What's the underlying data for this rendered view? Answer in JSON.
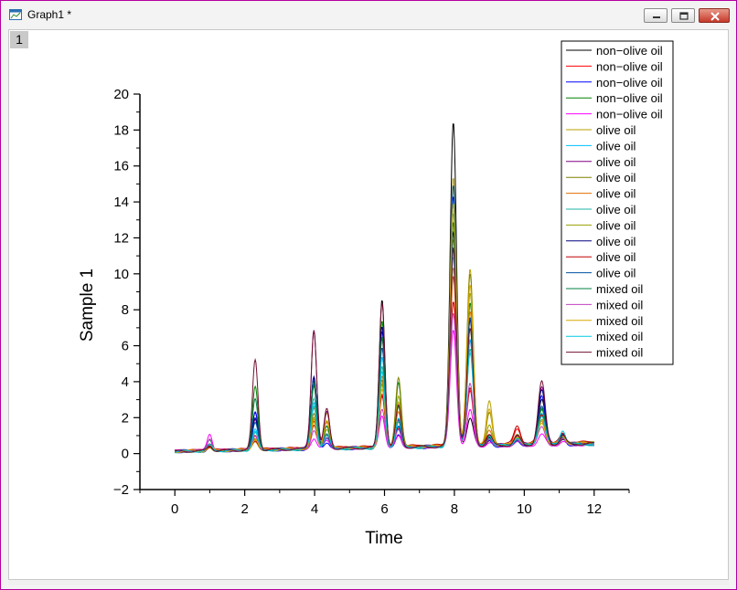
{
  "window": {
    "title": "Graph1 *",
    "layer_label": "1",
    "accent_border": "#b4009e"
  },
  "chart_data": {
    "type": "line",
    "title": "",
    "xlabel": "Time",
    "ylabel": "Sample 1",
    "xlim": [
      -1,
      13
    ],
    "ylim": [
      -2,
      20
    ],
    "xticks": [
      0,
      2,
      4,
      6,
      8,
      10,
      12
    ],
    "yticks": [
      -2,
      0,
      2,
      4,
      6,
      8,
      10,
      12,
      14,
      16,
      18,
      20
    ],
    "grid": false,
    "legend_position": "top-right",
    "x_range": [
      0,
      12
    ],
    "peaks": [
      {
        "center": 1.0,
        "width": 0.07
      },
      {
        "center": 2.3,
        "width": 0.08
      },
      {
        "center": 3.98,
        "width": 0.08
      },
      {
        "center": 4.35,
        "width": 0.08
      },
      {
        "center": 5.93,
        "width": 0.08
      },
      {
        "center": 6.4,
        "width": 0.08
      },
      {
        "center": 7.97,
        "width": 0.09
      },
      {
        "center": 8.45,
        "width": 0.09
      },
      {
        "center": 9.0,
        "width": 0.08
      },
      {
        "center": 9.8,
        "width": 0.09
      },
      {
        "center": 10.5,
        "width": 0.1
      },
      {
        "center": 11.1,
        "width": 0.08
      }
    ],
    "series": [
      {
        "name": "non−olive oil",
        "color": "#000000",
        "baseline": [
          0.15,
          0.55
        ],
        "heights": [
          0.3,
          2.0,
          4.0,
          0.5,
          8.2,
          0.6,
          18.0,
          1.5,
          0.3,
          0.2,
          2.5,
          0.3
        ]
      },
      {
        "name": "non−olive oil",
        "color": "#ff0000",
        "baseline": [
          0.15,
          0.6
        ],
        "heights": [
          0.2,
          0.8,
          1.5,
          0.8,
          3.0,
          1.0,
          9.5,
          3.0,
          0.4,
          0.8,
          1.5,
          0.4
        ]
      },
      {
        "name": "non−olive oil",
        "color": "#0000ff",
        "baseline": [
          0.1,
          0.5
        ],
        "heights": [
          0.3,
          2.2,
          4.0,
          0.4,
          6.5,
          0.8,
          14.0,
          6.0,
          0.3,
          0.3,
          2.8,
          0.4
        ]
      },
      {
        "name": "non−olive oil",
        "color": "#008000",
        "baseline": [
          0.12,
          0.55
        ],
        "heights": [
          0.2,
          3.5,
          3.5,
          1.5,
          7.0,
          3.6,
          13.5,
          8.0,
          0.5,
          0.3,
          2.0,
          0.5
        ]
      },
      {
        "name": "non−olive oil",
        "color": "#ff00ff",
        "baseline": [
          0.15,
          0.5
        ],
        "heights": [
          0.9,
          0.4,
          0.6,
          0.4,
          1.8,
          0.6,
          6.5,
          2.0,
          0.2,
          0.2,
          0.6,
          0.2
        ]
      },
      {
        "name": "olive oil",
        "color": "#b8a000",
        "baseline": [
          0.12,
          0.6
        ],
        "heights": [
          0.3,
          0.5,
          1.6,
          2.0,
          3.6,
          2.5,
          15.0,
          9.8,
          2.4,
          0.4,
          1.5,
          0.4
        ]
      },
      {
        "name": "olive oil",
        "color": "#00bfff",
        "baseline": [
          0.12,
          0.55
        ],
        "heights": [
          0.3,
          1.2,
          2.5,
          0.6,
          5.0,
          1.2,
          12.0,
          6.0,
          0.6,
          0.4,
          1.8,
          0.6
        ]
      },
      {
        "name": "olive oil",
        "color": "#800080",
        "baseline": [
          0.15,
          0.6
        ],
        "heights": [
          0.3,
          1.6,
          6.6,
          2.0,
          6.0,
          1.5,
          11.0,
          7.0,
          0.6,
          0.5,
          3.2,
          0.5
        ]
      },
      {
        "name": "olive oil",
        "color": "#808000",
        "baseline": [
          0.12,
          0.6
        ],
        "heights": [
          0.2,
          0.6,
          2.0,
          1.2,
          3.8,
          3.8,
          12.5,
          9.5,
          1.8,
          0.5,
          1.5,
          0.4
        ]
      },
      {
        "name": "olive oil",
        "color": "#e07000",
        "baseline": [
          0.15,
          0.55
        ],
        "heights": [
          0.2,
          0.6,
          2.2,
          1.5,
          4.0,
          2.0,
          10.0,
          7.5,
          0.8,
          0.4,
          1.3,
          0.4
        ]
      },
      {
        "name": "olive oil",
        "color": "#20b2aa",
        "baseline": [
          0.1,
          0.5
        ],
        "heights": [
          0.3,
          1.0,
          2.8,
          0.8,
          4.5,
          1.5,
          13.0,
          5.5,
          0.5,
          0.4,
          1.8,
          0.7
        ]
      },
      {
        "name": "olive oil",
        "color": "#9aa000",
        "baseline": [
          0.12,
          0.55
        ],
        "heights": [
          0.3,
          0.7,
          1.8,
          1.0,
          3.5,
          2.8,
          11.5,
          8.5,
          1.2,
          0.4,
          1.4,
          0.4
        ]
      },
      {
        "name": "olive oil",
        "color": "#000080",
        "baseline": [
          0.12,
          0.55
        ],
        "heights": [
          0.3,
          1.8,
          4.0,
          0.8,
          6.8,
          1.5,
          12.0,
          7.0,
          0.4,
          0.3,
          3.0,
          0.5
        ]
      },
      {
        "name": "olive oil",
        "color": "#c00000",
        "baseline": [
          0.15,
          0.65
        ],
        "heights": [
          0.2,
          0.5,
          1.2,
          0.8,
          2.8,
          1.0,
          8.0,
          3.2,
          0.5,
          1.0,
          1.6,
          0.5
        ]
      },
      {
        "name": "olive oil",
        "color": "#0050a0",
        "baseline": [
          0.12,
          0.55
        ],
        "heights": [
          0.3,
          1.5,
          3.6,
          0.6,
          5.5,
          1.2,
          14.5,
          7.2,
          0.4,
          0.3,
          2.2,
          0.4
        ]
      },
      {
        "name": "mixed oil",
        "color": "#008040",
        "baseline": [
          0.12,
          0.55
        ],
        "heights": [
          0.6,
          2.8,
          3.8,
          1.2,
          6.2,
          2.2,
          12.5,
          6.5,
          0.5,
          0.3,
          2.0,
          0.5
        ]
      },
      {
        "name": "mixed oil",
        "color": "#c040c0",
        "baseline": [
          0.15,
          0.5
        ],
        "heights": [
          0.7,
          0.8,
          1.0,
          0.6,
          2.2,
          1.0,
          7.5,
          3.5,
          0.3,
          0.3,
          1.0,
          0.3
        ]
      },
      {
        "name": "mixed oil",
        "color": "#d8a800",
        "baseline": [
          0.12,
          0.6
        ],
        "heights": [
          0.3,
          0.6,
          1.4,
          1.6,
          3.2,
          2.4,
          13.5,
          9.0,
          2.0,
          0.4,
          1.2,
          0.4
        ]
      },
      {
        "name": "mixed oil",
        "color": "#00c8e0",
        "baseline": [
          0.12,
          0.55
        ],
        "heights": [
          0.3,
          1.0,
          2.4,
          0.8,
          4.2,
          1.6,
          10.5,
          5.2,
          0.6,
          0.4,
          1.6,
          0.8
        ]
      },
      {
        "name": "mixed oil",
        "color": "#701030",
        "baseline": [
          0.12,
          0.55
        ],
        "heights": [
          0.3,
          5.0,
          6.6,
          2.2,
          8.1,
          2.3,
          11.0,
          6.5,
          0.6,
          0.5,
          3.5,
          0.5
        ]
      }
    ]
  }
}
